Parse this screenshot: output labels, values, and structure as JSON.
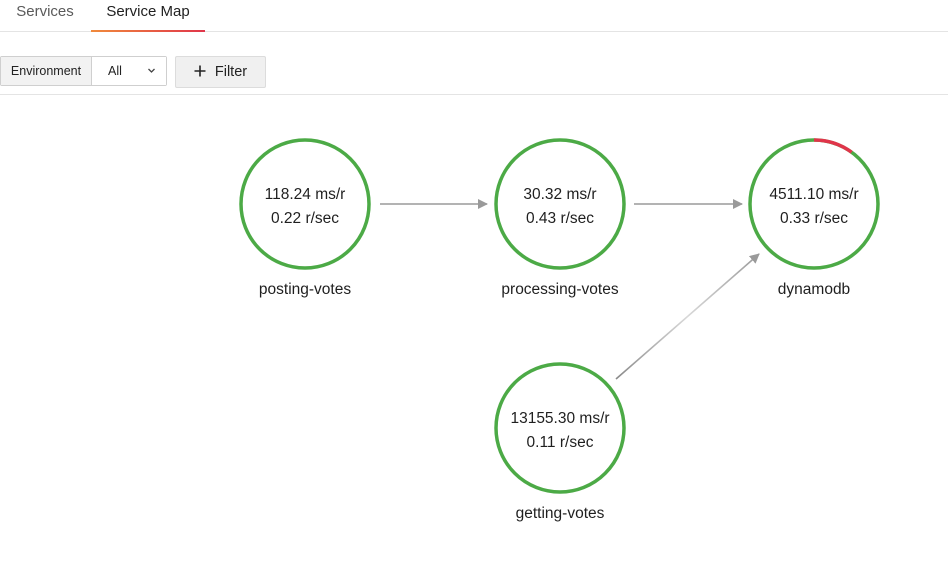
{
  "tabs": [
    {
      "label": "Services",
      "active": false
    },
    {
      "label": "Service Map",
      "active": true
    }
  ],
  "toolbar": {
    "environment_label": "Environment",
    "environment_value": "All",
    "filter_label": "Filter"
  },
  "colors": {
    "node_ok": "#4caa46",
    "node_error": "#e0354a",
    "edge": "#9a9a9a",
    "tab_accent_start": "#f08a3c",
    "tab_accent_end": "#e0364a"
  },
  "services": [
    {
      "name": "posting-votes",
      "latency": "118.24 ms/r",
      "throughput": "0.22 r/sec",
      "error_fraction": 0
    },
    {
      "name": "processing-votes",
      "latency": "30.32 ms/r",
      "throughput": "0.43 r/sec",
      "error_fraction": 0
    },
    {
      "name": "dynamodb",
      "latency": "4511.10 ms/r",
      "throughput": "0.33 r/sec",
      "error_fraction": 0.1
    },
    {
      "name": "getting-votes",
      "latency": "13155.30 ms/r",
      "throughput": "0.11 r/sec",
      "error_fraction": 0
    }
  ],
  "edges": [
    {
      "from": "posting-votes",
      "to": "processing-votes"
    },
    {
      "from": "processing-votes",
      "to": "dynamodb"
    },
    {
      "from": "getting-votes",
      "to": "dynamodb"
    }
  ]
}
